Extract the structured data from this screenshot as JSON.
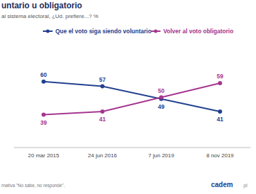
{
  "chart_data": {
    "type": "line",
    "title": "untario u obligatorio",
    "subtitle": "al sistema electoral, ¿Ud. prefiere...? %",
    "categories": [
      "20 mar 2015",
      "24 jun 2016",
      "7 jun 2019",
      "8 nov 2019"
    ],
    "series": [
      {
        "name": "Que el voto siga siendo voluntario",
        "color": "#22418f",
        "values": [
          60,
          57,
          49,
          41
        ],
        "marker": "circle"
      },
      {
        "name": "Volver al voto obligatorio",
        "color": "#a5358f",
        "values": [
          39,
          41,
          50,
          59
        ],
        "marker": "circle"
      }
    ],
    "ylim": [
      20,
      80
    ],
    "tick_labels": "x",
    "data_labels": true,
    "legend": "top",
    "footnote": "rnativa \"No sabe, no responde\".",
    "logo": "cadem",
    "logo_suffix": "pl"
  }
}
